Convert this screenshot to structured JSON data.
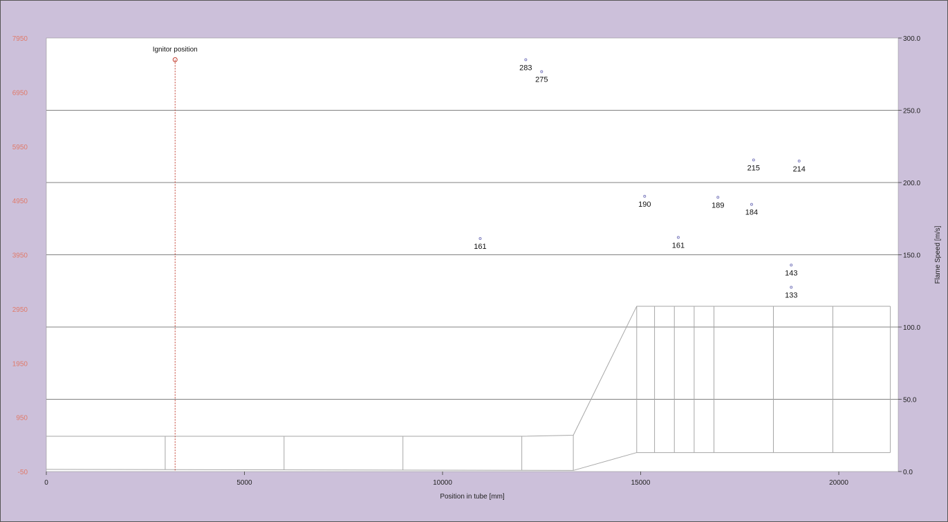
{
  "chart_data": {
    "type": "scatter",
    "xlabel": "Position in tube [mm]",
    "ylabel_right": "Flame Speed [m/s]",
    "xlim": [
      0,
      21500
    ],
    "xticks": [
      0,
      5000,
      10000,
      15000,
      20000
    ],
    "ylim_left": [
      -50,
      7950
    ],
    "yticks_left": [
      -50,
      950,
      1950,
      2950,
      3950,
      4950,
      5950,
      6950,
      7950
    ],
    "ylim_right": [
      0,
      300
    ],
    "yticks_right": [
      "0.0",
      "50.0",
      "100.0",
      "150.0",
      "200.0",
      "250.0",
      "300.0"
    ],
    "grid": "horizontal",
    "ignitor": {
      "label": "Ignitor position",
      "x": 3250,
      "y": 7550,
      "color": "#c0392b"
    },
    "points": [
      {
        "x": 12100,
        "y": 7550,
        "label": "283"
      },
      {
        "x": 12500,
        "y": 7330,
        "label": "275"
      },
      {
        "x": 17850,
        "y": 5700,
        "label": "215"
      },
      {
        "x": 19000,
        "y": 5680,
        "label": "214"
      },
      {
        "x": 15100,
        "y": 5030,
        "label": "190"
      },
      {
        "x": 16950,
        "y": 5010,
        "label": "189"
      },
      {
        "x": 17800,
        "y": 4880,
        "label": "184"
      },
      {
        "x": 10950,
        "y": 4250,
        "label": "161"
      },
      {
        "x": 15950,
        "y": 4270,
        "label": "161"
      },
      {
        "x": 18800,
        "y": 3760,
        "label": "143"
      },
      {
        "x": 18800,
        "y": 3350,
        "label": "133"
      }
    ],
    "tube_outline": {
      "top": [
        [
          0,
          600
        ],
        [
          12000,
          600
        ],
        [
          13300,
          620
        ],
        [
          14900,
          3000
        ],
        [
          21300,
          3000
        ]
      ],
      "bottom": [
        [
          0,
          -10
        ],
        [
          13300,
          -30
        ],
        [
          14900,
          300
        ],
        [
          21300,
          300
        ]
      ],
      "dividers": [
        3000,
        6000,
        9000,
        12000,
        13300,
        14900,
        15350,
        15850,
        16350,
        16850,
        18350,
        19850,
        21300
      ]
    },
    "colors": {
      "points": "#7f7fbf",
      "outline": "#a6a6a6",
      "grid": "#808080"
    }
  }
}
